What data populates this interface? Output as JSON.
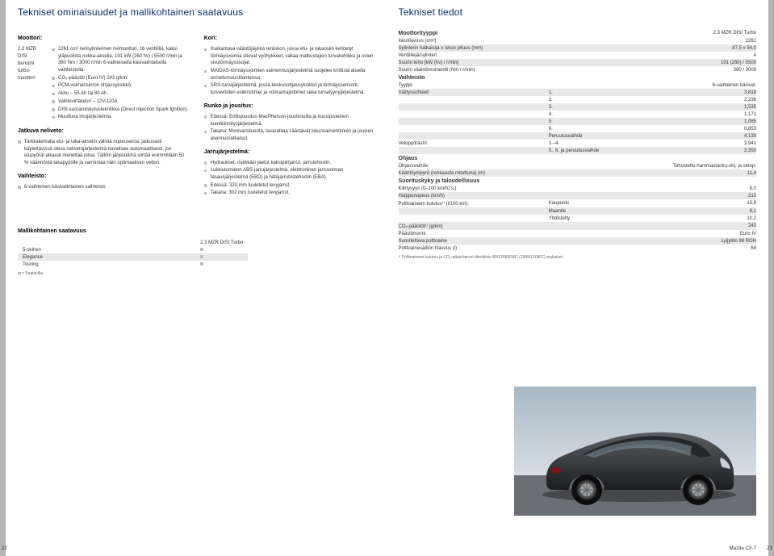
{
  "left": {
    "title": "Tekniset ominaisuudet ja mallikohtainen saatavuus",
    "col1": {
      "engine_h": "Moottori:",
      "engine_labels": "2.3 MZR\nDISI\nbensiini\nturbo-\nmoottori",
      "engine_bullets": [
        "2261 cm³ nelisylinterinen rivimoottori, 16 venttiiliä, kaksi yläpuolista nokka-akselia, 191 kW (260 hv) / 5500 r/min ja 380 Nm / 3000 r/min 6-vaihteisella käsivalintaisella vaihteistolla.",
        "CO₂-päästöt (Euro IV) 243 g/km.",
        "PCM-voimansiirron ohjausyksikkö.",
        "Akku – 55 Ah tai 80 Ah.",
        "Vaihtovirtalaturi – 12V-110A.",
        "DISI-suoraruiskutustekniikka (Direct Injection Spark Ignition).",
        "Muuttuva imujärjestelmä."
      ],
      "awd_h": "Jatkuva neliveto:",
      "awd_bullets": [
        "Tarkkailemalla etu- ja taka-akselin välistä nopeuseroa, jatkuvasti käytettävissä oleva nelivetojärjestelmä havaitsee automaattisesti, jos etupyörät alkavat menettää pitoa. Tällöin järjestelmä siirtää enimmillään 50 % väännöstä takapyörille ja varmistaa näin optimaalisen vedon."
      ],
      "trans_h": "Vaihteisto:",
      "trans_bullets": [
        "6-vaihteinen käsivalintainen vaihteisto"
      ]
    },
    "col2": {
      "body_h": "Kori:",
      "body_bullets": [
        "Itsekantava vääntöjäykkä teräskori, jossa etu- ja takaosiin kehitetyt törmäysvoimia sitovat vyöhykkeet, vakaa matkustajien turvakehikko ja ovien sivutörmäyssuojat.",
        "MAIDAS-törmäysvoimien vaimennusjärjestelmä suojelee kriittisiä alueita onnettomuustilanteissa.",
        "SRS-turvajärjestelmä, jossa keskusohjausyksikkö ja törmäyssensorit, turvavöiden esikiristimet ja voimanrajoittimet sekä turvatyynyjärjestelmä."
      ],
      "chassis_h": "Runko ja jousitus:",
      "chassis_bullets": [
        "Edessä: Erillisjousitus MacPherson-joustintuilla ja kuusipisteinen kumikiinnitysjärjestelmä.",
        "Takana: Monivarsituenta, tavaratilaa säästävät iskunvaimentimien ja jousien asennusratkaisut."
      ],
      "brakes_h": "Jarrujärjestelmä:",
      "brakes_bullets": [
        "Hydrauliset, ristikkäin jaetut kaksipiirijarrut, jarrutehostin.",
        "Lukkiutumaton ABS-jarrujärjestelmä, elektroninen jarruvoiman tasausjärjestelmä (EBD) ja hätäjarrutustehostin (EBA).",
        "Edessä: 320 mm tuuletetut levyjarrut.",
        "Takana: 302 mm tuuletetut levyjarrut."
      ]
    },
    "avail": {
      "h": "Mallikohtainen saatavuus",
      "col_hdr": "2.3 MZR DISI Turbo",
      "rows": [
        "5-ovinen",
        "Elegance",
        "Touring"
      ],
      "legend": "= Saatavilla."
    },
    "pagenum": "22"
  },
  "right": {
    "title": "Tekniset tiedot",
    "hdr_col": "2.3 MZR DISI Turbo",
    "groups": [
      {
        "name": "Moottorityyppi",
        "rows": [
          [
            "Iskutilavuus (cm³)",
            "",
            "2261"
          ],
          [
            "Sylinterin halkaisija x iskun pituus (mm)",
            "",
            "87,5 x 94,0"
          ],
          [
            "Venttiilejä/sylinteri",
            "",
            "4"
          ],
          [
            "Suurin teho [kW (hv) / r/min]",
            "",
            "191 (260) / 5500"
          ],
          [
            "Suurin vääntömomentti (Nm / r/min)",
            "",
            "380 / 3000"
          ]
        ]
      },
      {
        "name": "Vaihteisto",
        "rows": [
          [
            "Tyyppi",
            "",
            "6-vaihteinen käsival."
          ],
          [
            "Välityssuhteet:",
            "1.",
            "3,818"
          ],
          [
            "",
            "2.",
            "2,238"
          ],
          [
            "",
            "3.",
            "1,535"
          ],
          [
            "",
            "4.",
            "1,171"
          ],
          [
            "",
            "5.",
            "1,085"
          ],
          [
            "",
            "6.",
            "0,853"
          ],
          [
            "",
            "Peruutusvaihde",
            "4,139"
          ],
          [
            "Vetopyörästö:",
            "1.–4.",
            "3,941"
          ],
          [
            "",
            "5., 6. ja peruutusvaihde",
            "3,350"
          ]
        ]
      },
      {
        "name": "Ohjaus",
        "rows": [
          [
            "Ohjausvaihde",
            "",
            "Tehostettu hammastanko-ohj. ja vetop."
          ],
          [
            "Kääntöympyrä (renkaasta mitattuna) (m)",
            "",
            "11,4"
          ]
        ]
      },
      {
        "name": "Suorituskyky ja taloudellisuus",
        "rows": [
          [
            "Kiihtyvyys (0–100 km/h) s.)",
            "",
            "8,0"
          ],
          [
            "Huippunopeus (km/h)",
            "",
            "210"
          ],
          [
            "Polttoaineen kulutus¹⁾ (l/100 km):",
            "Kaupunki",
            "13,8"
          ],
          [
            "",
            "Maantie",
            "8,1"
          ],
          [
            "",
            "Yhdistetty",
            "10,2"
          ],
          [
            "CO₂-päästöt¹⁾ (g/km)",
            "",
            "243"
          ],
          [
            "Päästönormi",
            "",
            "Euro IV"
          ],
          [
            "Suositeltava polttoaine",
            "",
            "Lyijytön 98 RON"
          ],
          [
            "Polttoainesäiliön tilavuus (l)",
            "",
            "69"
          ]
        ]
      }
    ],
    "footnote": "¹⁾ Polttoaineen kulutus ja CO₂-päästöarvot direktiivin 80/1268/EWG (1999/100/EC) mukaiset.",
    "footer": "Mazda CX-7",
    "pagenum": "23"
  },
  "colors": {
    "title": "#0b2c6b",
    "bullet": "#bfbfbf",
    "stripe": "#e8e8e8",
    "margin": "#b4b4b4",
    "car_body": "#3b3f42",
    "car_shadow": "#1a1c1e",
    "sky_top": "#a9b8c4",
    "sky_bot": "#d6dde3",
    "ground": "#6b6e72"
  }
}
